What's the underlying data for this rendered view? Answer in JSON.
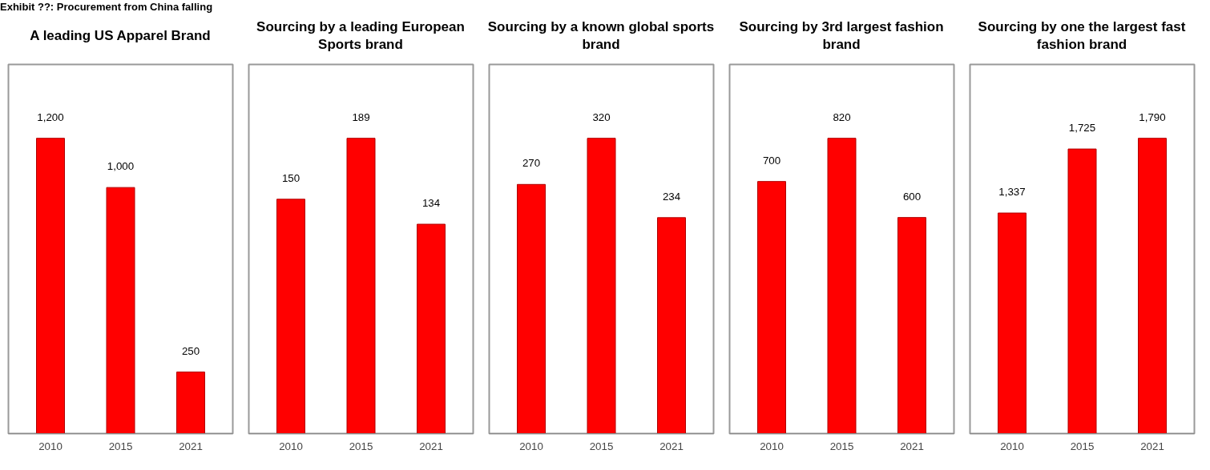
{
  "chart_data": [
    {
      "type": "bar",
      "title": "A leading US Apparel Brand",
      "annotations": [
        "Exhibit ??: Procurement from China falling"
      ],
      "categories": [
        "2010",
        "2015",
        "2021"
      ],
      "values": [
        1200,
        1000,
        250
      ],
      "value_labels": [
        "1,200",
        "1,000",
        "250"
      ],
      "color": "#ff0000"
    },
    {
      "type": "bar",
      "title": "Sourcing by a leading European Sports brand",
      "categories": [
        "2010",
        "2015",
        "2021"
      ],
      "values": [
        150,
        189,
        134
      ],
      "value_labels": [
        "150",
        "189",
        "134"
      ],
      "color": "#ff0000"
    },
    {
      "type": "bar",
      "title": "Sourcing by a known global sports brand",
      "categories": [
        "2010",
        "2015",
        "2021"
      ],
      "values": [
        270,
        320,
        234
      ],
      "value_labels": [
        "270",
        "320",
        "234"
      ],
      "color": "#ff0000"
    },
    {
      "type": "bar",
      "title": "Sourcing by 3rd largest fashion brand",
      "categories": [
        "2010",
        "2015",
        "2021"
      ],
      "values": [
        700,
        820,
        600
      ],
      "value_labels": [
        "700",
        "820",
        "600"
      ],
      "color": "#ff0000"
    },
    {
      "type": "bar",
      "title": "Sourcing by one the largest fast fashion brand",
      "categories": [
        "2010",
        "2015",
        "2021"
      ],
      "values": [
        1337,
        1725,
        1790
      ],
      "value_labels": [
        "1,337",
        "1,725",
        "1,790"
      ],
      "color": "#ff0000"
    }
  ]
}
